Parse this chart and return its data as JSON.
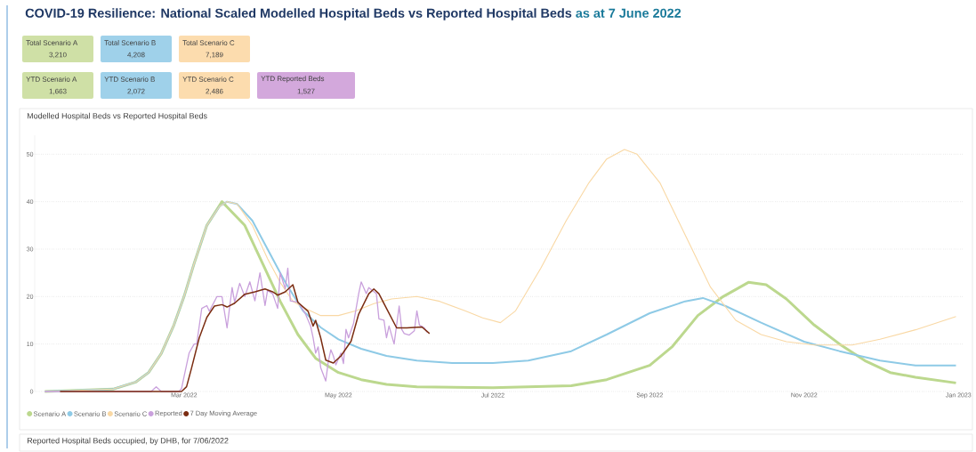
{
  "chart_data": [
    {
      "type": "other",
      "title": "COVID-19 Resilience: National Scaled Modelled Hospital Beds vs Reported Hospital Beds",
      "subtitle": "as at 7 June 2022",
      "categories": [
        "Total Scenario A",
        "Total Scenario B",
        "Total Scenario C",
        "YTD Scenario A",
        "YTD Scenario B",
        "YTD Scenario C",
        "YTD Reported Beds"
      ],
      "value_labels": [
        "3,210",
        "4,208",
        "7,189",
        "1,663",
        "2,072",
        "2,486",
        "1,527"
      ],
      "colors": [
        "#cfe0a6",
        "#9fd1ea",
        "#fcdcae",
        "#cfe0a6",
        "#9fd1ea",
        "#fcdcae",
        "#d3a8dc"
      ]
    },
    {
      "type": "line",
      "title": "Modelled Hospital Beds vs Reported Hospital Beds",
      "annotations": [
        "Reported Hospital Beds occupied, by DHB, for 7/06/2022"
      ],
      "xlim": [
        "2022-01-01",
        "2023-01-03"
      ],
      "xticks": [
        {
          "value": "2022-03-01",
          "label": "Mar 2022"
        },
        {
          "value": "2022-05-01",
          "label": "May 2022"
        },
        {
          "value": "2022-07-01",
          "label": "Jul 2022"
        },
        {
          "value": "2022-09-01",
          "label": "Sep 2022"
        },
        {
          "value": "2022-11-01",
          "label": "Nov 2022"
        },
        {
          "value": "2023-01-01",
          "label": "Jan 2023"
        }
      ],
      "ylim": [
        0,
        54
      ],
      "yticks": [
        0,
        10,
        20,
        30,
        40,
        50
      ],
      "grid": "y",
      "legend": "bottom left",
      "series": [
        {
          "name": "Scenario A",
          "color": "#bcd88e",
          "x": [
            "2022-01-05",
            "2022-02-01",
            "2022-02-10",
            "2022-02-15",
            "2022-02-20",
            "2022-02-25",
            "2022-03-01",
            "2022-03-05",
            "2022-03-10",
            "2022-03-16",
            "2022-03-25",
            "2022-04-01",
            "2022-04-08",
            "2022-04-15",
            "2022-04-22",
            "2022-05-01",
            "2022-05-10",
            "2022-05-20",
            "2022-06-01",
            "2022-07-01",
            "2022-08-01",
            "2022-08-15",
            "2022-09-01",
            "2022-09-10",
            "2022-09-20",
            "2022-09-30",
            "2022-10-10",
            "2022-10-17",
            "2022-10-25",
            "2022-11-05",
            "2022-11-15",
            "2022-11-25",
            "2022-12-05",
            "2022-12-15",
            "2022-12-31"
          ],
          "values": [
            0,
            0.5,
            2,
            4,
            8,
            14,
            20,
            27,
            35,
            40,
            35,
            27,
            19,
            12,
            7,
            4,
            2.5,
            1.5,
            1,
            0.8,
            1.2,
            2.5,
            5.5,
            9.5,
            16,
            20,
            23,
            22.5,
            19.5,
            14,
            10,
            6.5,
            4,
            3,
            1.8
          ]
        },
        {
          "name": "Scenario B",
          "color": "#8ecae6",
          "x": [
            "2022-01-05",
            "2022-02-01",
            "2022-02-10",
            "2022-02-15",
            "2022-02-20",
            "2022-02-25",
            "2022-03-01",
            "2022-03-05",
            "2022-03-10",
            "2022-03-15",
            "2022-03-18",
            "2022-03-22",
            "2022-03-28",
            "2022-04-03",
            "2022-04-10",
            "2022-04-17",
            "2022-04-24",
            "2022-05-01",
            "2022-05-10",
            "2022-05-20",
            "2022-06-01",
            "2022-06-15",
            "2022-07-01",
            "2022-07-15",
            "2022-08-01",
            "2022-08-15",
            "2022-09-01",
            "2022-09-15",
            "2022-09-22",
            "2022-10-01",
            "2022-10-15",
            "2022-11-01",
            "2022-11-15",
            "2022-12-01",
            "2022-12-15",
            "2022-12-31"
          ],
          "values": [
            0,
            0.5,
            2,
            4,
            8,
            14,
            20,
            27,
            35,
            39,
            40,
            39.5,
            36,
            30,
            23,
            17,
            13.5,
            11,
            9,
            7.5,
            6.5,
            6,
            6,
            6.5,
            8.5,
            12,
            16.5,
            19,
            19.7,
            18,
            14.5,
            10.5,
            8.5,
            6.5,
            5.5,
            5.5
          ]
        },
        {
          "name": "Scenario C",
          "color": "#f9d8a4",
          "x": [
            "2022-01-05",
            "2022-02-01",
            "2022-02-10",
            "2022-02-15",
            "2022-02-20",
            "2022-02-25",
            "2022-03-01",
            "2022-03-05",
            "2022-03-10",
            "2022-03-15",
            "2022-03-18",
            "2022-03-22",
            "2022-03-28",
            "2022-04-03",
            "2022-04-08",
            "2022-04-13",
            "2022-04-18",
            "2022-04-24",
            "2022-05-01",
            "2022-05-08",
            "2022-05-15",
            "2022-05-22",
            "2022-06-01",
            "2022-06-10",
            "2022-06-20",
            "2022-06-27",
            "2022-07-04",
            "2022-07-10",
            "2022-07-20",
            "2022-07-30",
            "2022-08-08",
            "2022-08-15",
            "2022-08-22",
            "2022-08-27",
            "2022-09-05",
            "2022-09-15",
            "2022-09-25",
            "2022-10-05",
            "2022-10-15",
            "2022-10-25",
            "2022-11-05",
            "2022-11-20",
            "2022-12-01",
            "2022-12-15",
            "2022-12-31"
          ],
          "values": [
            0,
            0.5,
            2,
            4,
            8,
            14,
            20,
            27,
            35,
            39,
            40,
            39.5,
            35,
            28,
            23,
            19,
            17.5,
            16,
            16,
            17,
            18.5,
            19.5,
            20,
            19,
            17,
            15.5,
            14.5,
            17,
            26,
            36,
            44,
            49,
            51,
            50,
            44,
            33,
            22,
            15,
            12,
            10.5,
            9.8,
            9.8,
            11,
            13,
            15.8
          ]
        },
        {
          "name": "Reported",
          "color": "#c9a0dc",
          "x": [
            "2022-01-05",
            "2022-02-16",
            "2022-02-18",
            "2022-02-20",
            "2022-02-27",
            "2022-02-28",
            "2022-03-01",
            "2022-03-03",
            "2022-03-05",
            "2022-03-06",
            "2022-03-08",
            "2022-03-10",
            "2022-03-11",
            "2022-03-14",
            "2022-03-16",
            "2022-03-18",
            "2022-03-20",
            "2022-03-21",
            "2022-03-23",
            "2022-03-25",
            "2022-03-27",
            "2022-03-29",
            "2022-03-31",
            "2022-04-02",
            "2022-04-03",
            "2022-04-05",
            "2022-04-07",
            "2022-04-08",
            "2022-04-10",
            "2022-04-11",
            "2022-04-12",
            "2022-04-15",
            "2022-04-16",
            "2022-04-18",
            "2022-04-20",
            "2022-04-21",
            "2022-04-22",
            "2022-04-23",
            "2022-04-24",
            "2022-04-26",
            "2022-04-27",
            "2022-04-28",
            "2022-04-29",
            "2022-04-30",
            "2022-05-02",
            "2022-05-03",
            "2022-05-04",
            "2022-05-05",
            "2022-05-07",
            "2022-05-09",
            "2022-05-10",
            "2022-05-12",
            "2022-05-13",
            "2022-05-16",
            "2022-05-17",
            "2022-05-19",
            "2022-05-20",
            "2022-05-21",
            "2022-05-23",
            "2022-05-25",
            "2022-05-26",
            "2022-05-27",
            "2022-05-29",
            "2022-05-31",
            "2022-06-01",
            "2022-06-02",
            "2022-06-04",
            "2022-06-05"
          ],
          "values": [
            0,
            0,
            1,
            0,
            0,
            0.6,
            3.1,
            8.1,
            10,
            10,
            17.5,
            18.1,
            16.9,
            20,
            20,
            13.4,
            21.9,
            18.8,
            22.8,
            20,
            23.1,
            19.1,
            25,
            18.1,
            21.3,
            20.6,
            17.5,
            25,
            21.6,
            26,
            19.1,
            18.8,
            18.1,
            16.3,
            13.8,
            11.3,
            8.1,
            9.4,
            5,
            2.2,
            6.3,
            8.8,
            7.5,
            5.6,
            8.1,
            5.9,
            13.1,
            11.3,
            14.4,
            20.6,
            23.1,
            20.6,
            21.9,
            20.6,
            15.3,
            15,
            11.3,
            13.8,
            10,
            18,
            13.1,
            12.2,
            11.9,
            12.8,
            17,
            14,
            13.4,
            12.5
          ]
        },
        {
          "name": "7 Day Moving Average",
          "color": "#7b2d12",
          "x": [
            "2022-01-11",
            "2022-02-28",
            "2022-03-02",
            "2022-03-04",
            "2022-03-07",
            "2022-03-10",
            "2022-03-13",
            "2022-03-16",
            "2022-03-18",
            "2022-03-21",
            "2022-03-25",
            "2022-03-29",
            "2022-04-02",
            "2022-04-05",
            "2022-04-07",
            "2022-04-10",
            "2022-04-13",
            "2022-04-15",
            "2022-04-19",
            "2022-04-21",
            "2022-04-22",
            "2022-04-24",
            "2022-04-26",
            "2022-04-29",
            "2022-05-02",
            "2022-05-06",
            "2022-05-09",
            "2022-05-13",
            "2022-05-15",
            "2022-05-17",
            "2022-05-20",
            "2022-05-24",
            "2022-05-28",
            "2022-06-03",
            "2022-06-06"
          ],
          "values": [
            0,
            0,
            1,
            5,
            11.3,
            15.6,
            18,
            18.3,
            17.8,
            18.6,
            20.5,
            21,
            21.6,
            21,
            20.3,
            21,
            22.5,
            18.8,
            16.9,
            13.8,
            15,
            11.3,
            6.6,
            6,
            7.5,
            10.6,
            16.3,
            20.6,
            21.6,
            20.6,
            17.5,
            13.4,
            13.4,
            13.6,
            12.2
          ]
        }
      ]
    }
  ]
}
